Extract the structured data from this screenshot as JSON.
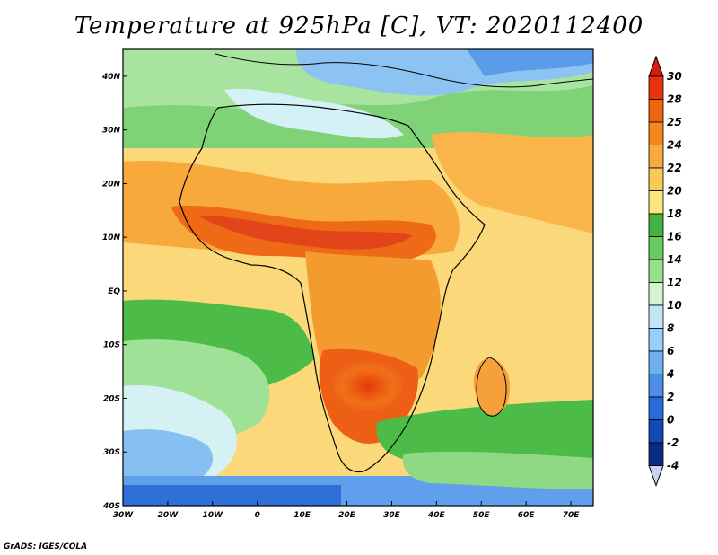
{
  "title": "Temperature at 925hPa [C], VT: 2020112400",
  "credit": "GrADS: IGES/COLA",
  "map": {
    "lon_range": [
      -30,
      75
    ],
    "lat_range": [
      -40,
      45
    ],
    "lon_ticks": [
      {
        "value": -30,
        "label": "30W"
      },
      {
        "value": -20,
        "label": "20W"
      },
      {
        "value": -10,
        "label": "10W"
      },
      {
        "value": 0,
        "label": "0"
      },
      {
        "value": 10,
        "label": "10E"
      },
      {
        "value": 20,
        "label": "20E"
      },
      {
        "value": 30,
        "label": "30E"
      },
      {
        "value": 40,
        "label": "40E"
      },
      {
        "value": 50,
        "label": "50E"
      },
      {
        "value": 60,
        "label": "60E"
      },
      {
        "value": 70,
        "label": "70E"
      }
    ],
    "lat_ticks": [
      {
        "value": 40,
        "label": "40N"
      },
      {
        "value": 30,
        "label": "30N"
      },
      {
        "value": 20,
        "label": "20N"
      },
      {
        "value": 10,
        "label": "10N"
      },
      {
        "value": 0,
        "label": "EQ"
      },
      {
        "value": -10,
        "label": "10S"
      },
      {
        "value": -20,
        "label": "20S"
      },
      {
        "value": -30,
        "label": "30S"
      },
      {
        "value": -40,
        "label": "40S"
      }
    ]
  },
  "colorbar": {
    "levels": [
      {
        "label": "30",
        "color": "#e8320f"
      },
      {
        "label": "28",
        "color": "#f0640f"
      },
      {
        "label": "25",
        "color": "#f5871e"
      },
      {
        "label": "24",
        "color": "#f8aa3c"
      },
      {
        "label": "22",
        "color": "#fac858"
      },
      {
        "label": "20",
        "color": "#fde482"
      },
      {
        "label": "18",
        "color": "#43b53e"
      },
      {
        "label": "16",
        "color": "#66cd5c"
      },
      {
        "label": "14",
        "color": "#97e08b"
      },
      {
        "label": "12",
        "color": "#d2f4ce"
      },
      {
        "label": "10",
        "color": "#c4e3fb"
      },
      {
        "label": "8",
        "color": "#96cff7"
      },
      {
        "label": "6",
        "color": "#6fb0f0"
      },
      {
        "label": "4",
        "color": "#4b90e6"
      },
      {
        "label": "2",
        "color": "#2b6bd8"
      },
      {
        "label": "0",
        "color": "#1549b6"
      },
      {
        "label": "-2",
        "color": "#0b2a86"
      },
      {
        "label": "-4",
        "color": "#cfcff5"
      }
    ],
    "top_color": "#d71c0f"
  }
}
